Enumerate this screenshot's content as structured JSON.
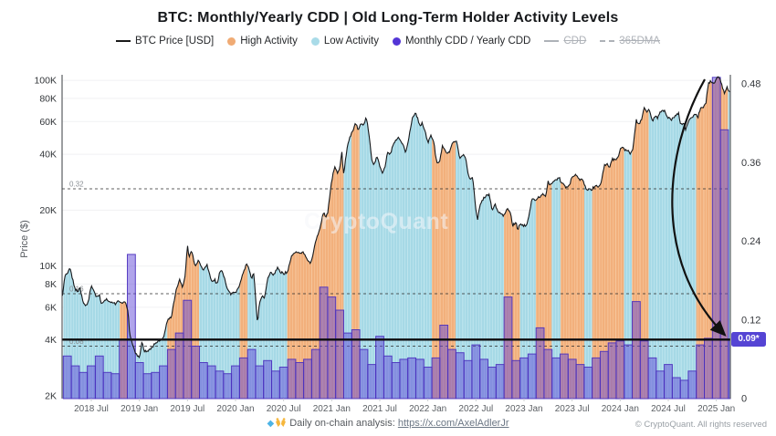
{
  "page": {
    "title": "BTC: Monthly/Yearly CDD | Old Long-Term Holder Activity Levels",
    "watermark": "CryptoQuant"
  },
  "legend": {
    "items": [
      {
        "label": "BTC Price [USD]",
        "swatch": "line",
        "color": "#1a1a1a",
        "disabled": false
      },
      {
        "label": "High Activity",
        "swatch": "dot",
        "color": "#f0ab74",
        "disabled": false
      },
      {
        "label": "Low Activity",
        "swatch": "dot",
        "color": "#a9dbe8",
        "disabled": false
      },
      {
        "label": "Monthly CDD / Yearly CDD",
        "swatch": "dot",
        "color": "#5335d6",
        "disabled": false
      },
      {
        "label": "CDD",
        "swatch": "line",
        "color": "#aeb2b8",
        "disabled": true
      },
      {
        "label": "365DMA",
        "swatch": "dashed",
        "color": "#aeb2b8",
        "disabled": true
      }
    ]
  },
  "annotations": {
    "badge_label": "0.09*",
    "badge_color": "#5544d4"
  },
  "footer": {
    "gem_icon": "gem-icon",
    "hands_icon": "raised-hands-icon",
    "analysis_prefix": "Daily on-chain analysis: ",
    "link": "https://x.com/AxelAdlerJr",
    "copyright": "© CryptoQuant. All rights reserved"
  },
  "chart_data": {
    "type": "combo",
    "title": "BTC: Monthly/Yearly CDD | Old Long-Term Holder Activity Levels",
    "x_unit": "months since 2018-04",
    "x_range_months": [
      "2018-04",
      "2025-03"
    ],
    "x_ticks": {
      "positions_m": [
        3,
        9,
        15,
        21,
        27,
        33,
        39,
        45,
        51,
        57,
        63,
        69,
        75,
        81
      ],
      "labels": [
        "2018 Jul",
        "2019 Jan",
        "2019 Jul",
        "2020 Jan",
        "2020 Jul",
        "2021 Jan",
        "2021 Jul",
        "2022 Jan",
        "2022 Jul",
        "2023 Jan",
        "2023 Jul",
        "2024 Jan",
        "2024 Jul",
        "2025 Jan"
      ]
    },
    "left_axis": {
      "type": "log",
      "label": "Price ($)",
      "ticks": [
        {
          "label": "2K",
          "value": 2000
        },
        {
          "label": "4K",
          "value": 4000
        },
        {
          "label": "6K",
          "value": 6000
        },
        {
          "label": "8K",
          "value": 8000
        },
        {
          "label": "10K",
          "value": 10000
        },
        {
          "label": "20K",
          "value": 20000
        },
        {
          "label": "40K",
          "value": 40000
        },
        {
          "label": "60K",
          "value": 60000
        },
        {
          "label": "80K",
          "value": 80000
        },
        {
          "label": "100K",
          "value": 100000
        }
      ]
    },
    "right_axis": {
      "min": 0,
      "max": 0.48,
      "ticks": [
        {
          "label": "0",
          "value": 0
        },
        {
          "label": "0.12",
          "value": 0.12
        },
        {
          "label": "0.24",
          "value": 0.24
        },
        {
          "label": "0.36",
          "value": 0.36
        },
        {
          "label": "0.48",
          "value": 0.48
        }
      ]
    },
    "price_series": {
      "name": "BTC Price [USD]",
      "color": "#16181b",
      "points_month_usd": [
        [
          -0.6,
          6800
        ],
        [
          -0.45,
          7900
        ],
        [
          -0.3,
          8900
        ],
        [
          0,
          9200
        ],
        [
          0.4,
          9700
        ],
        [
          0.7,
          8400
        ],
        [
          1,
          7500
        ],
        [
          1.3,
          7300
        ],
        [
          1.6,
          7600
        ],
        [
          2,
          6400
        ],
        [
          2.4,
          6100
        ],
        [
          2.7,
          6700
        ],
        [
          3,
          7900
        ],
        [
          3.3,
          7400
        ],
        [
          3.6,
          6900
        ],
        [
          4,
          7000
        ],
        [
          4.2,
          6300
        ],
        [
          4.6,
          6500
        ],
        [
          5,
          6600
        ],
        [
          5.4,
          6350
        ],
        [
          6,
          6300
        ],
        [
          6.4,
          6450
        ],
        [
          7,
          6350
        ],
        [
          7.3,
          6400
        ],
        [
          7.6,
          5600
        ],
        [
          7.8,
          4300
        ],
        [
          8,
          4000
        ],
        [
          8.4,
          3500
        ],
        [
          8.7,
          3300
        ],
        [
          9,
          3200
        ],
        [
          9.3,
          3900
        ],
        [
          9.6,
          3500
        ],
        [
          10,
          3450
        ],
        [
          10.5,
          3600
        ],
        [
          11,
          3850
        ],
        [
          11.5,
          3950
        ],
        [
          12,
          4100
        ],
        [
          12.5,
          5100
        ],
        [
          13,
          5350
        ],
        [
          13.5,
          7100
        ],
        [
          14,
          8550
        ],
        [
          14.4,
          7700
        ],
        [
          14.7,
          8800
        ],
        [
          15,
          12900
        ],
        [
          15.2,
          11100
        ],
        [
          15.5,
          12300
        ],
        [
          15.8,
          10700
        ],
        [
          16,
          10000
        ],
        [
          16.4,
          10900
        ],
        [
          16.7,
          9800
        ],
        [
          17,
          9600
        ],
        [
          17.4,
          10200
        ],
        [
          18,
          8300
        ],
        [
          18.4,
          8500
        ],
        [
          18.7,
          7900
        ],
        [
          19,
          9200
        ],
        [
          19.3,
          9500
        ],
        [
          19.6,
          8600
        ],
        [
          20,
          7500
        ],
        [
          20.4,
          7100
        ],
        [
          21,
          7200
        ],
        [
          21.4,
          7600
        ],
        [
          22,
          9350
        ],
        [
          22.4,
          10300
        ],
        [
          22.7,
          9600
        ],
        [
          23,
          8600
        ],
        [
          23.3,
          9100
        ],
        [
          23.55,
          6200
        ],
        [
          23.75,
          4900
        ],
        [
          24,
          6400
        ],
        [
          24.3,
          6900
        ],
        [
          24.6,
          6700
        ],
        [
          25,
          8600
        ],
        [
          25.4,
          9300
        ],
        [
          25.7,
          8800
        ],
        [
          26,
          9450
        ],
        [
          26.3,
          9900
        ],
        [
          26.6,
          9200
        ],
        [
          27,
          9150
        ],
        [
          27.5,
          9300
        ],
        [
          28,
          11300
        ],
        [
          28.4,
          11900
        ],
        [
          29,
          11650
        ],
        [
          29.4,
          12100
        ],
        [
          29.7,
          11300
        ],
        [
          30,
          10800
        ],
        [
          30.3,
          10400
        ],
        [
          30.6,
          11000
        ],
        [
          31,
          13800
        ],
        [
          31.5,
          15600
        ],
        [
          32,
          19700
        ],
        [
          32.2,
          18300
        ],
        [
          32.5,
          19400
        ],
        [
          33,
          29000
        ],
        [
          33.4,
          34500
        ],
        [
          33.7,
          31500
        ],
        [
          34,
          33100
        ],
        [
          34.25,
          41900
        ],
        [
          34.5,
          30800
        ],
        [
          34.75,
          38000
        ],
        [
          35,
          45200
        ],
        [
          35.5,
          52100
        ],
        [
          36,
          58900
        ],
        [
          36.3,
          54200
        ],
        [
          36.6,
          58100
        ],
        [
          37,
          57800
        ],
        [
          37.3,
          63500
        ],
        [
          37.6,
          53500
        ],
        [
          38,
          37300
        ],
        [
          38.3,
          34800
        ],
        [
          38.6,
          39000
        ],
        [
          39,
          35000
        ],
        [
          39.3,
          31600
        ],
        [
          39.6,
          33500
        ],
        [
          40,
          41500
        ],
        [
          40.3,
          39900
        ],
        [
          40.6,
          44600
        ],
        [
          41,
          47100
        ],
        [
          41.4,
          49300
        ],
        [
          41.7,
          46800
        ],
        [
          42,
          43800
        ],
        [
          42.25,
          40800
        ],
        [
          42.6,
          47500
        ],
        [
          43,
          61300
        ],
        [
          43.4,
          66900
        ],
        [
          43.7,
          63000
        ],
        [
          44,
          57000
        ],
        [
          44.3,
          59000
        ],
        [
          44.6,
          53800
        ],
        [
          45,
          46200
        ],
        [
          45.4,
          50800
        ],
        [
          45.7,
          47300
        ],
        [
          46,
          38500
        ],
        [
          46.2,
          35100
        ],
        [
          46.5,
          37000
        ],
        [
          46.8,
          44500
        ],
        [
          47,
          43200
        ],
        [
          47.4,
          39800
        ],
        [
          47.7,
          41000
        ],
        [
          48,
          45500
        ],
        [
          48.3,
          47100
        ],
        [
          48.6,
          46500
        ],
        [
          49,
          37700
        ],
        [
          49.4,
          39700
        ],
        [
          49.7,
          38600
        ],
        [
          50,
          31800
        ],
        [
          50.3,
          29100
        ],
        [
          50.6,
          30100
        ],
        [
          51,
          19900
        ],
        [
          51.2,
          17700
        ],
        [
          51.5,
          21200
        ],
        [
          52,
          23300
        ],
        [
          52.4,
          24400
        ],
        [
          52.7,
          23900
        ],
        [
          53,
          20000
        ],
        [
          53.4,
          21500
        ],
        [
          53.7,
          19800
        ],
        [
          54,
          19400
        ],
        [
          54.4,
          18800
        ],
        [
          54.7,
          19600
        ],
        [
          55,
          20500
        ],
        [
          55.3,
          19300
        ],
        [
          55.6,
          16500
        ],
        [
          56,
          17100
        ],
        [
          56.2,
          15800
        ],
        [
          56.5,
          16800
        ],
        [
          57,
          16500
        ],
        [
          57.4,
          16900
        ],
        [
          58,
          23100
        ],
        [
          58.4,
          22700
        ],
        [
          58.7,
          23200
        ],
        [
          59,
          23500
        ],
        [
          59.4,
          24800
        ],
        [
          59.7,
          23300
        ],
        [
          60,
          28500
        ],
        [
          60.3,
          27300
        ],
        [
          60.6,
          28300
        ],
        [
          61,
          29250
        ],
        [
          61.4,
          29900
        ],
        [
          61.7,
          28100
        ],
        [
          62,
          27200
        ],
        [
          62.4,
          26400
        ],
        [
          62.7,
          27100
        ],
        [
          63,
          30500
        ],
        [
          63.3,
          31200
        ],
        [
          63.6,
          30300
        ],
        [
          64,
          29200
        ],
        [
          64.4,
          29100
        ],
        [
          64.7,
          26100
        ],
        [
          65,
          26000
        ],
        [
          65.4,
          25900
        ],
        [
          65.7,
          26500
        ],
        [
          66,
          26950
        ],
        [
          66.3,
          26600
        ],
        [
          66.6,
          27800
        ],
        [
          67,
          34500
        ],
        [
          67.4,
          35100
        ],
        [
          67.7,
          34200
        ],
        [
          68,
          37700
        ],
        [
          68.4,
          37300
        ],
        [
          68.7,
          38000
        ],
        [
          69,
          42300
        ],
        [
          69.4,
          43900
        ],
        [
          69.7,
          41800
        ],
        [
          70,
          42600
        ],
        [
          70.25,
          39900
        ],
        [
          70.6,
          43100
        ],
        [
          71,
          61200
        ],
        [
          71.4,
          57200
        ],
        [
          71.7,
          62500
        ],
        [
          72,
          71300
        ],
        [
          72.3,
          67300
        ],
        [
          72.6,
          70800
        ],
        [
          73,
          60600
        ],
        [
          73.4,
          64100
        ],
        [
          73.7,
          62900
        ],
        [
          74,
          67500
        ],
        [
          74.3,
          69100
        ],
        [
          74.6,
          67800
        ],
        [
          75,
          62700
        ],
        [
          75.4,
          61100
        ],
        [
          75.7,
          63200
        ],
        [
          76,
          64600
        ],
        [
          76.3,
          66600
        ],
        [
          76.55,
          57600
        ],
        [
          77,
          59000
        ],
        [
          77.15,
          53900
        ],
        [
          77.5,
          60100
        ],
        [
          78,
          63300
        ],
        [
          78.4,
          65800
        ],
        [
          78.7,
          63100
        ],
        [
          79,
          70200
        ],
        [
          79.4,
          72500
        ],
        [
          79.7,
          75500
        ],
        [
          80,
          96400
        ],
        [
          80.4,
          99200
        ],
        [
          80.7,
          95600
        ],
        [
          81,
          102100
        ],
        [
          81.25,
          104800
        ],
        [
          81.6,
          97600
        ],
        [
          82,
          84300
        ],
        [
          82.3,
          92400
        ],
        [
          82.6,
          86900
        ],
        [
          83,
          84000
        ]
      ]
    },
    "activity_by_month": {
      "legend": {
        "H": "High Activity",
        "L": "Low Activity"
      },
      "values": [
        "L",
        "L",
        "L",
        "L",
        "L",
        "L",
        "L",
        "H",
        "L",
        "L",
        "L",
        "L",
        "L",
        "H",
        "H",
        "H",
        "H",
        "L",
        "L",
        "L",
        "L",
        "L",
        "H",
        "L",
        "L",
        "L",
        "L",
        "L",
        "H",
        "H",
        "H",
        "H",
        "H",
        "H",
        "H",
        "L",
        "H",
        "L",
        "L",
        "L",
        "L",
        "L",
        "L",
        "L",
        "L",
        "L",
        "H",
        "H",
        "H",
        "L",
        "L",
        "L",
        "L",
        "L",
        "L",
        "H",
        "H",
        "L",
        "L",
        "H",
        "H",
        "L",
        "H",
        "H",
        "H",
        "L",
        "H",
        "H",
        "H",
        "H",
        "L",
        "H",
        "H",
        "L",
        "L",
        "L",
        "L",
        "L",
        "L",
        "H",
        "H",
        "H",
        "H",
        "L"
      ]
    },
    "activity_colors": {
      "high": "#f2b07c",
      "high_stripe": "#f6c295",
      "low": "#a6d9e6",
      "low_stripe": "#bde4ee"
    },
    "cdd_bars": {
      "name": "Monthly CDD / Yearly CDD",
      "fill": "rgba(97,74,216,0.5)",
      "stroke": "rgba(73,47,190,0.9)",
      "values_by_month": [
        0.065,
        0.05,
        0.04,
        0.05,
        0.065,
        0.04,
        0.038,
        0.09,
        0.22,
        0.055,
        0.038,
        0.04,
        0.05,
        0.075,
        0.1,
        0.15,
        0.08,
        0.055,
        0.05,
        0.042,
        0.038,
        0.05,
        0.062,
        0.075,
        0.05,
        0.058,
        0.042,
        0.048,
        0.06,
        0.055,
        0.06,
        0.075,
        0.17,
        0.155,
        0.135,
        0.1,
        0.105,
        0.075,
        0.052,
        0.095,
        0.065,
        0.055,
        0.06,
        0.062,
        0.06,
        0.048,
        0.062,
        0.112,
        0.075,
        0.07,
        0.058,
        0.082,
        0.06,
        0.048,
        0.052,
        0.155,
        0.058,
        0.062,
        0.068,
        0.108,
        0.075,
        0.062,
        0.068,
        0.06,
        0.052,
        0.048,
        0.062,
        0.072,
        0.085,
        0.088,
        0.082,
        0.148,
        0.088,
        0.062,
        0.042,
        0.052,
        0.032,
        0.028,
        0.042,
        0.082,
        0.092,
        0.49,
        0.41,
        0.09
      ]
    },
    "reference_lines": [
      {
        "value": 0.32,
        "label": "0.32",
        "style": "dashed"
      },
      {
        "value": 0.16,
        "label": "0.16",
        "style": "dashed"
      },
      {
        "value": 0.08,
        "label": "0.08",
        "style": "dashed"
      }
    ],
    "current_line": {
      "value": 0.09,
      "label": "0.09*",
      "color": "#0c0c0e"
    },
    "annotation_arrow": {
      "from_month": 79.6,
      "from_price_usd": 99500,
      "to_value": 0.09
    }
  }
}
